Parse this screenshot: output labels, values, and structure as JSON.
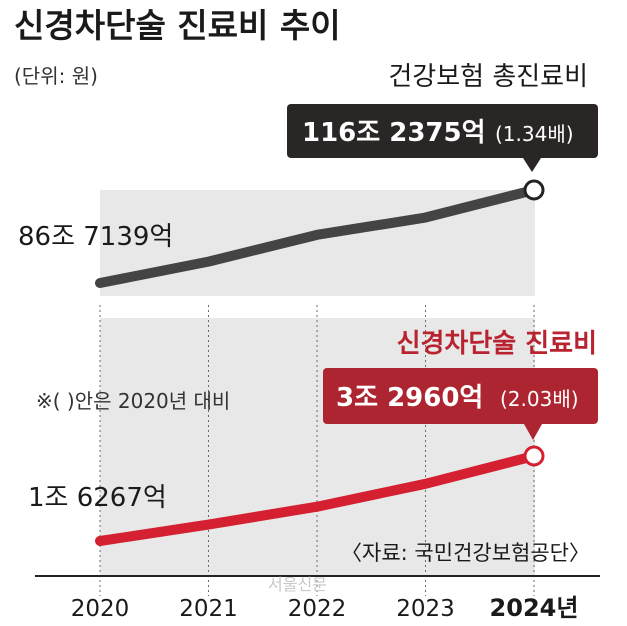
{
  "chart_data": {
    "type": "line",
    "title": "신경차단술 진료비 추이",
    "unit_label": "(단위: 원)",
    "categories": [
      "2020",
      "2021",
      "2022",
      "2023",
      "2024년"
    ],
    "series": [
      {
        "name": "건강보험 총진료비",
        "color": "#444444",
        "values": [
          86.7139,
          93.5,
          102.0,
          107.5,
          116.2375
        ],
        "start_label": "86조 7139억",
        "end_label_main": "116조 2375억",
        "end_label_ratio": "(1.34배)",
        "callout_color": "#2b2626"
      },
      {
        "name": "신경차단술 진료비",
        "color": "#d42030",
        "values": [
          1.6267,
          1.95,
          2.3,
          2.75,
          3.296
        ],
        "start_label": "1조 6267억",
        "end_label_main": "3조 2960억",
        "end_label_ratio": "(2.03배)",
        "callout_color": "#ad2530"
      }
    ],
    "note": "※(   )안은 2020년 대비",
    "source": "〈자료: 국민건강보험공단〉",
    "watermark": "서울신문",
    "grid": "vertical",
    "legend": "labels near series end"
  }
}
